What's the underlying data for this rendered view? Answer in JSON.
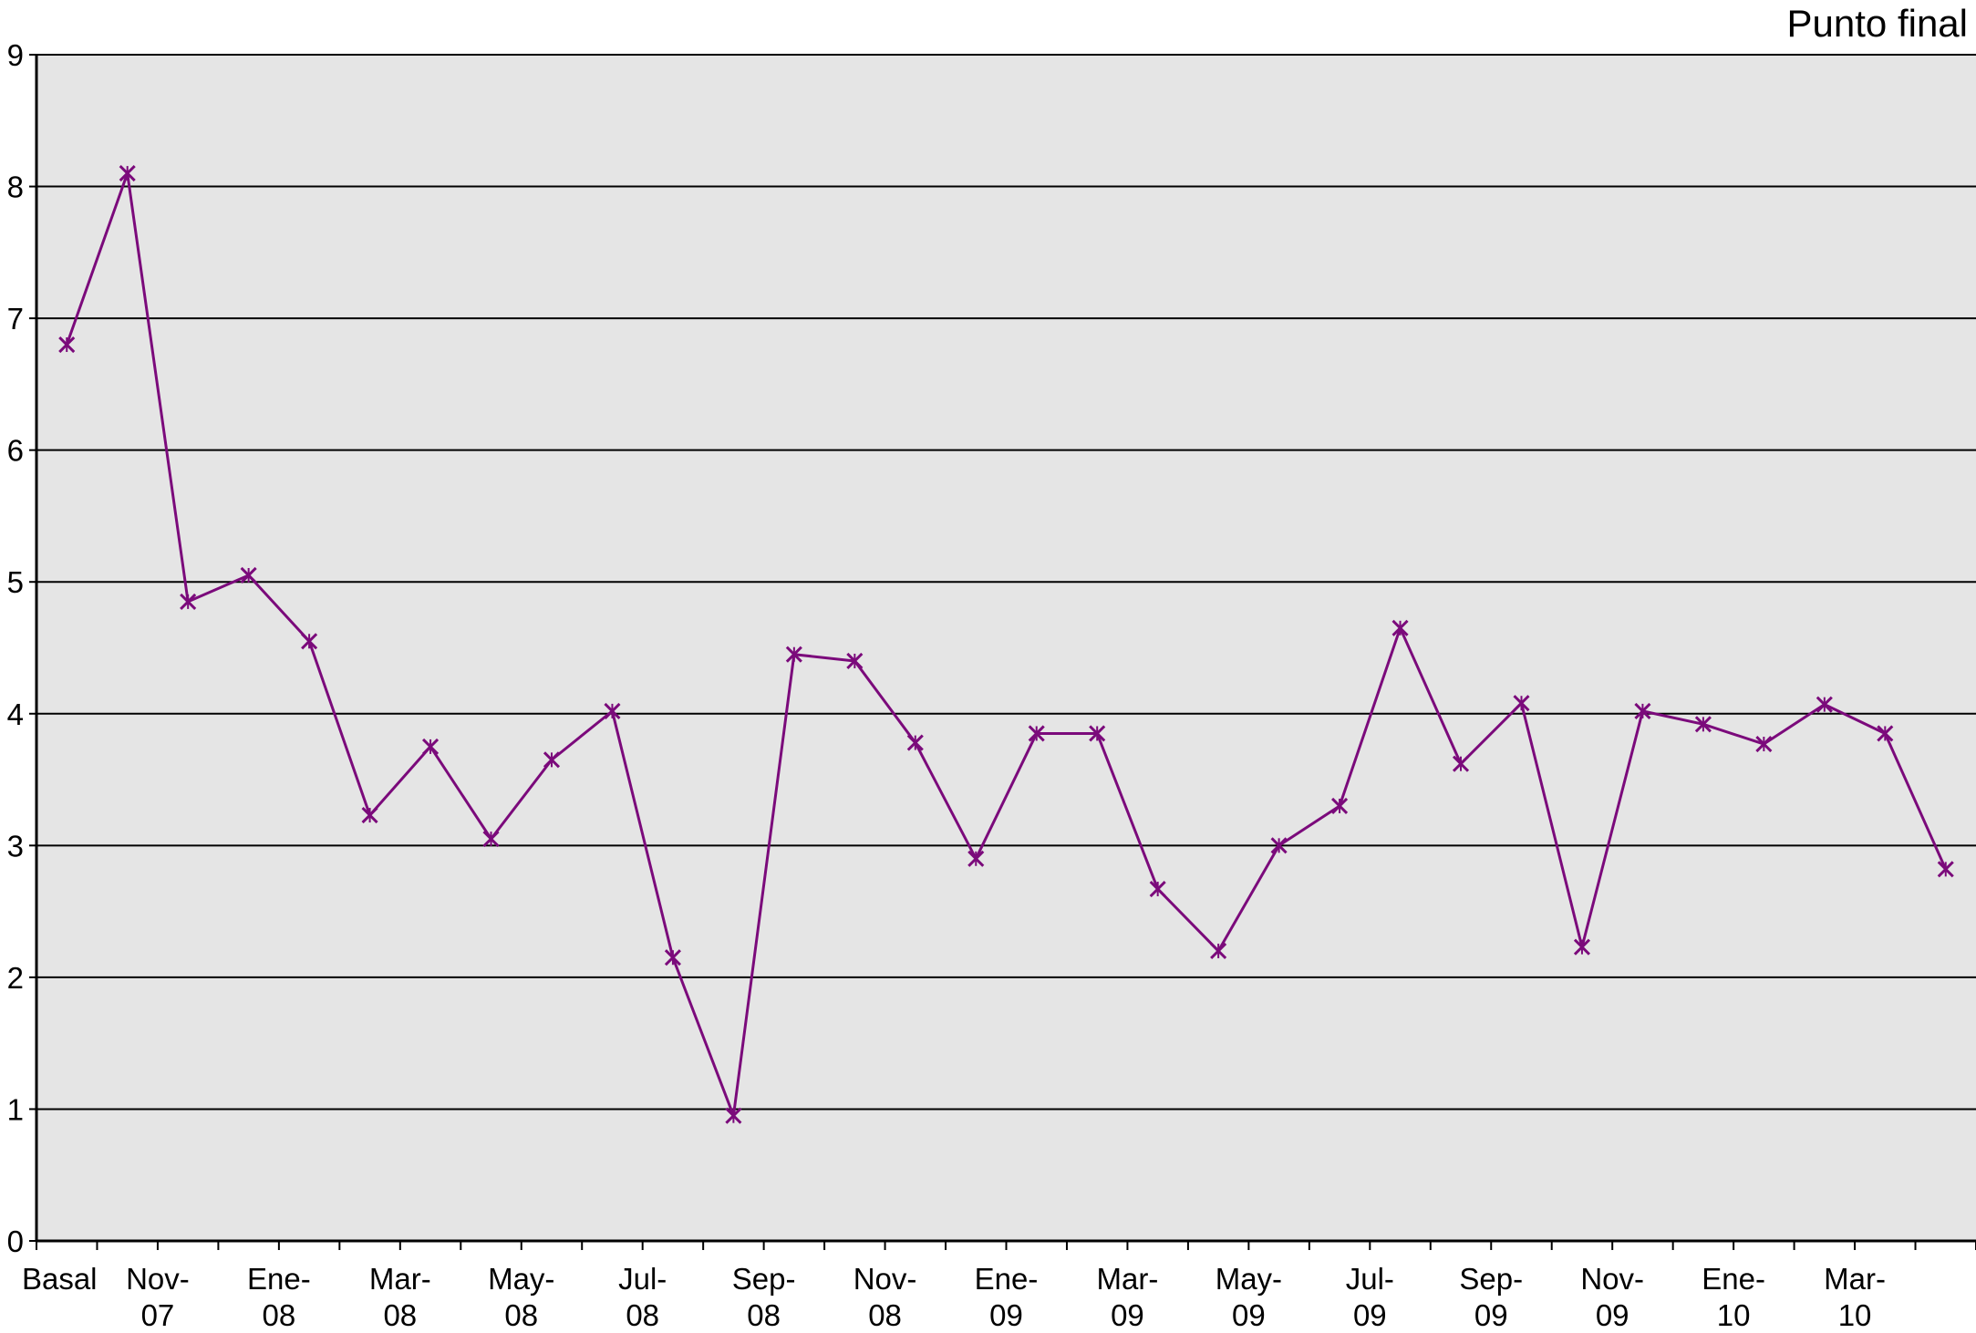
{
  "chart_data": {
    "type": "line",
    "title": "Punto final",
    "xlabel": "",
    "ylabel": "",
    "ylim": [
      0,
      9
    ],
    "yticks": [
      0,
      1,
      2,
      3,
      4,
      5,
      6,
      7,
      8,
      9
    ],
    "grid": true,
    "background": "#e5e5e5",
    "series_color": "#7b0a7b",
    "marker": "x",
    "x_tick_labels": [
      [
        "Basal"
      ],
      [
        "Nov-",
        "07"
      ],
      [
        "Ene-",
        "08"
      ],
      [
        "Mar-",
        "08"
      ],
      [
        "May-",
        "08"
      ],
      [
        "Jul-",
        "08"
      ],
      [
        "Sep-",
        "08"
      ],
      [
        "Nov-",
        "08"
      ],
      [
        "Ene-",
        "09"
      ],
      [
        "Mar-",
        "09"
      ],
      [
        "May-",
        "09"
      ],
      [
        "Jul-",
        "09"
      ],
      [
        "Sep-",
        "09"
      ],
      [
        "Nov-",
        "09"
      ],
      [
        "Ene-",
        "10"
      ],
      [
        "Mar-",
        "10"
      ]
    ],
    "series": [
      {
        "values": [
          6.8,
          8.1,
          4.85,
          5.05,
          4.55,
          3.23,
          3.75,
          3.05,
          3.65,
          4.02,
          2.15,
          0.95,
          4.45,
          4.4,
          3.78,
          2.9,
          3.85,
          3.85,
          2.67,
          2.2,
          3.0,
          3.3,
          4.65,
          3.62,
          4.08,
          2.23,
          4.02,
          3.92,
          3.77,
          4.07,
          3.85,
          2.82
        ]
      }
    ]
  }
}
